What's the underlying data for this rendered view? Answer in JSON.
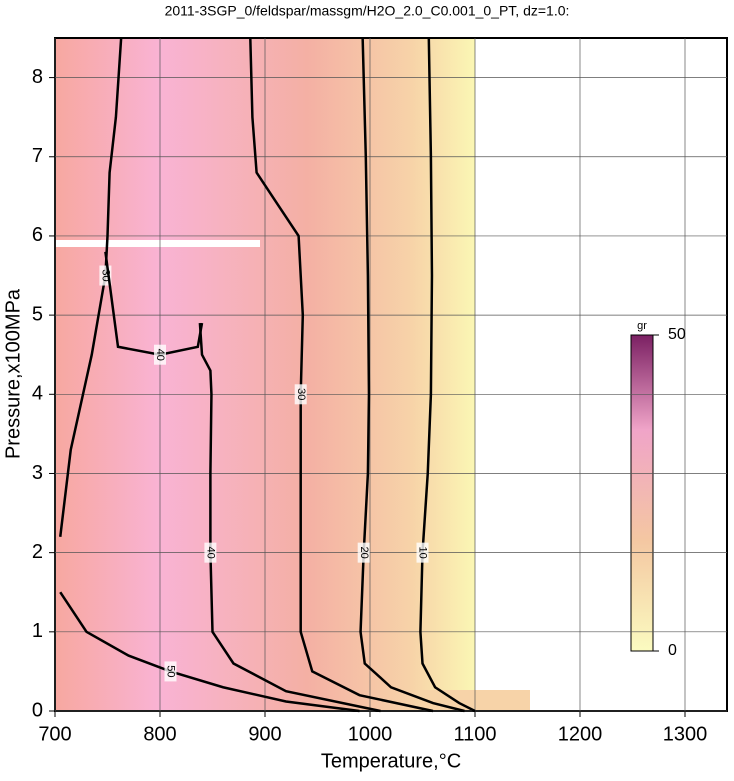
{
  "chart_data": {
    "type": "contour",
    "title": "2011-3SGP_0/feldspar/massgm/H2O_2.0_C0.001_0_PT, dz=1.0:",
    "x_label": "Temperature,°C",
    "y_label": "Pressure,x100MPa",
    "xlim": [
      700,
      1340
    ],
    "ylim": [
      0,
      8.5
    ],
    "xticks": [
      700,
      800,
      900,
      1000,
      1100,
      1200,
      1300
    ],
    "yticks": [
      0,
      1,
      2,
      3,
      4,
      5,
      6,
      7,
      8
    ],
    "grid": true,
    "colorbar": {
      "label": "gr",
      "lim": [
        0,
        50
      ],
      "ticks": [
        0,
        50
      ]
    },
    "series": [
      {
        "level": 10,
        "x": [
          1056,
          1058,
          1059,
          1058,
          1055,
          1050,
          1048,
          1050,
          1062,
          1085,
          1100
        ],
        "y": [
          8.5,
          7.0,
          5.5,
          4.0,
          3.0,
          2.0,
          1.0,
          0.6,
          0.3,
          0.1,
          0
        ]
      },
      {
        "level": 20,
        "x": [
          993,
          996,
          998,
          999,
          998,
          994,
          991,
          995,
          1020,
          1060,
          1090
        ],
        "y": [
          8.5,
          7.0,
          5.5,
          4.0,
          3.0,
          2.0,
          1.0,
          0.6,
          0.3,
          0.1,
          0
        ]
      },
      {
        "level": 30,
        "x": [
          886,
          888,
          892,
          912,
          932,
          936,
          934,
          934,
          934,
          945,
          990,
          1060
        ],
        "y": [
          8.5,
          7.5,
          6.8,
          6.4,
          6.0,
          5.0,
          4.0,
          2.5,
          1.0,
          0.5,
          0.2,
          0
        ]
      },
      {
        "level": 40,
        "x": [
          838,
          840,
          848,
          849,
          848,
          848,
          850,
          870,
          920,
          1010
        ],
        "y": [
          4.9,
          4.5,
          4.3,
          4.0,
          3.0,
          2.0,
          1.0,
          0.6,
          0.25,
          0
        ]
      },
      {
        "level": 50,
        "x": [
          705,
          730,
          770,
          810,
          860,
          920,
          990
        ],
        "y": [
          1.5,
          1.0,
          0.7,
          0.5,
          0.3,
          0.12,
          0
        ]
      },
      {
        "level": 30,
        "x": [
          763,
          758,
          752,
          750,
          748,
          735,
          715,
          705
        ],
        "y": [
          8.5,
          7.5,
          6.8,
          6.0,
          5.5,
          4.5,
          3.3,
          2.2
        ]
      },
      {
        "level": 40,
        "x": [
          748,
          760,
          800,
          836,
          840
        ],
        "y": [
          5.8,
          4.6,
          4.5,
          4.6,
          4.9
        ]
      }
    ]
  }
}
